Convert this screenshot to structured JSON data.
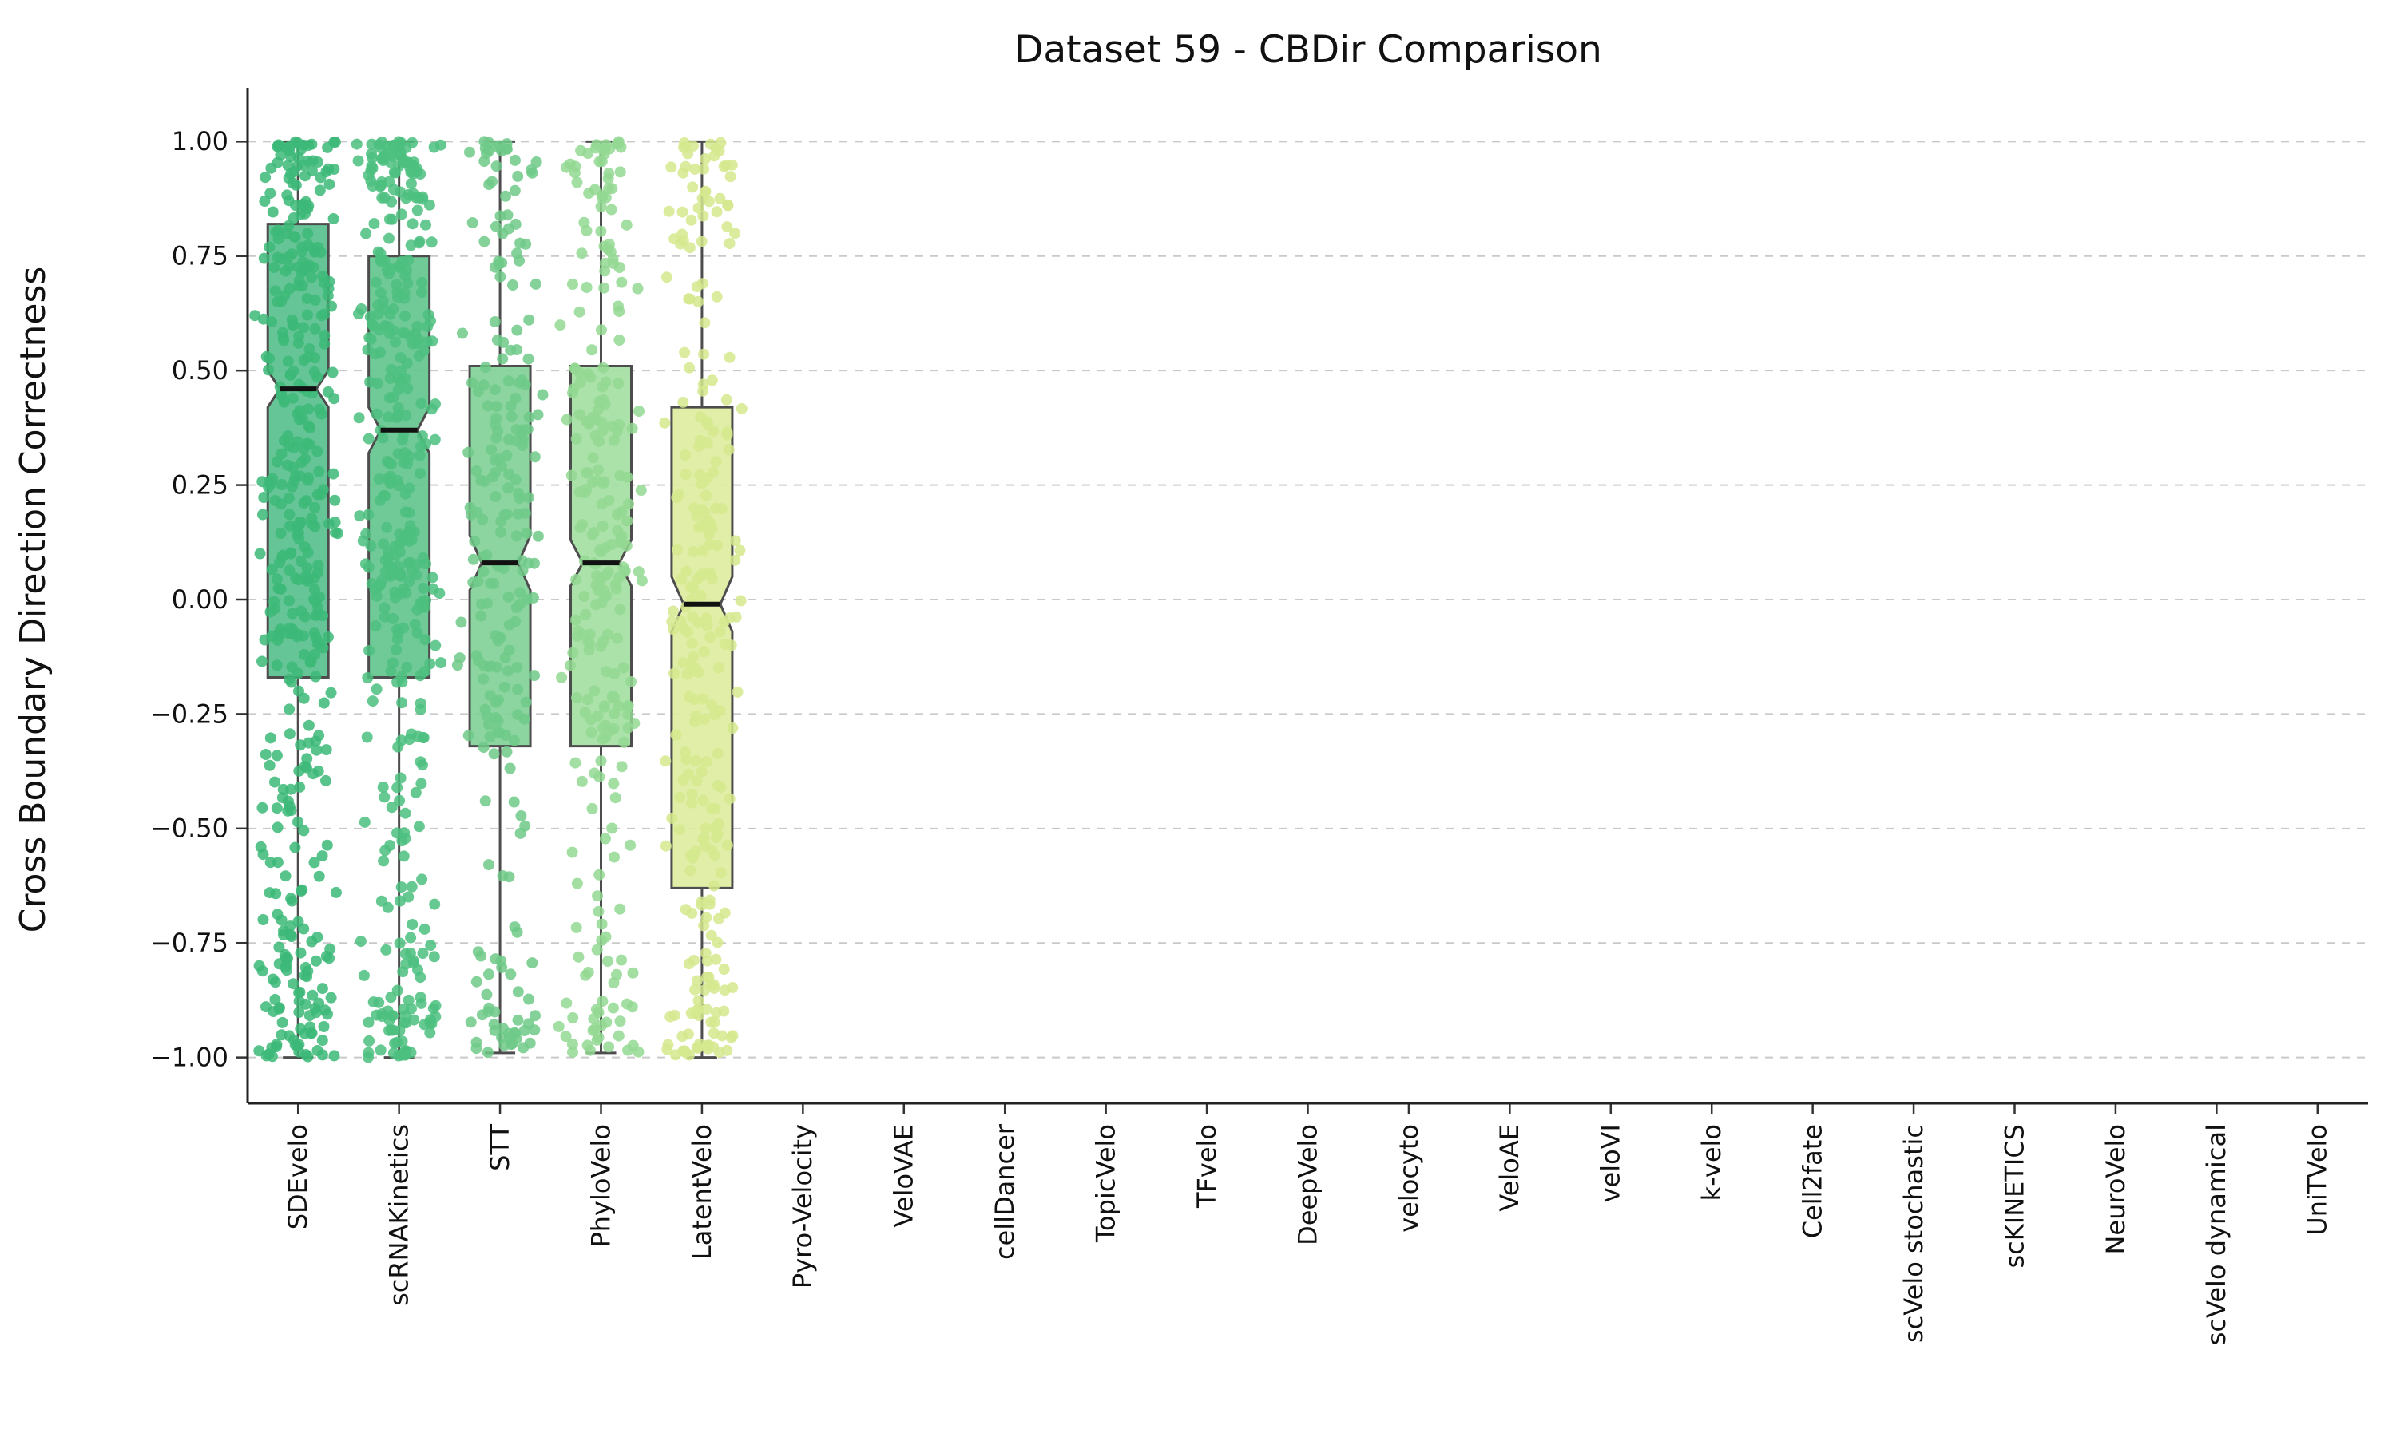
{
  "title": "Dataset 59 - CBDir Comparison",
  "chart_data": {
    "type": "boxplot",
    "title": "Dataset 59 - CBDir Comparison",
    "xlabel": "",
    "ylabel": "Cross Boundary Direction Correctness",
    "ylim": [
      -1.1,
      1.1
    ],
    "yticks": [
      1.0,
      0.75,
      0.5,
      0.25,
      0.0,
      -0.25,
      -0.5,
      -0.75,
      -1.0
    ],
    "ytick_labels": [
      "1.00",
      "0.75",
      "0.50",
      "0.25",
      "0.00",
      "−0.25",
      "−0.50",
      "−0.75",
      "−1.00"
    ],
    "grid": "horizontal-dashed",
    "grid_color": "#c9c9c9",
    "categories": [
      "SDEvelo",
      "scRNAKinetics",
      "STT",
      "PhyloVelo",
      "LatentVelo",
      "Pyro-Velocity",
      "VeloVAE",
      "cellDancer",
      "TopicVelo",
      "TFvelo",
      "DeepVelo",
      "velocyto",
      "VeloAE",
      "veloVI",
      "k-velo",
      "Cell2fate",
      "scVelo stochastic",
      "scKINETICS",
      "NeuroVelo",
      "scVelo dynamical",
      "UniTVelo"
    ],
    "notched": true,
    "overlay": "jittered-points",
    "boxes": [
      {
        "category": "SDEvelo",
        "median": 0.46,
        "q1": -0.17,
        "q3": 0.82,
        "notch_low": 0.42,
        "notch_high": 0.5,
        "whisker_low": -1.0,
        "whisker_high": 1.0,
        "box_color": "#55bf8b",
        "point_color": "#3cb878",
        "n_points": 420
      },
      {
        "category": "scRNAKinetics",
        "median": 0.37,
        "q1": -0.17,
        "q3": 0.75,
        "notch_low": 0.32,
        "notch_high": 0.42,
        "whisker_low": -1.0,
        "whisker_high": 1.0,
        "box_color": "#61c48c",
        "point_color": "#4cbf7f",
        "n_points": 400
      },
      {
        "category": "STT",
        "median": 0.08,
        "q1": -0.32,
        "q3": 0.51,
        "notch_low": 0.02,
        "notch_high": 0.14,
        "whisker_low": -0.99,
        "whisker_high": 1.0,
        "box_color": "#80d097",
        "point_color": "#6fca88",
        "n_points": 230
      },
      {
        "category": "PhyloVelo",
        "median": 0.08,
        "q1": -0.32,
        "q3": 0.51,
        "notch_low": 0.03,
        "notch_high": 0.13,
        "whisker_low": -0.99,
        "whisker_high": 1.0,
        "box_color": "#a2dfa0",
        "point_color": "#93d893",
        "n_points": 260
      },
      {
        "category": "LatentVelo",
        "median": -0.01,
        "q1": -0.63,
        "q3": 0.42,
        "notch_low": -0.07,
        "notch_high": 0.05,
        "whisker_low": -1.0,
        "whisker_high": 1.0,
        "box_color": "#ddec9d",
        "point_color": "#d5e98e",
        "n_points": 260
      }
    ],
    "empty_categories": [
      "Pyro-Velocity",
      "VeloVAE",
      "cellDancer",
      "TopicVelo",
      "TFvelo",
      "DeepVelo",
      "velocyto",
      "VeloAE",
      "veloVI",
      "k-velo",
      "Cell2fate",
      "scVelo stochastic",
      "scKINETICS",
      "NeuroVelo",
      "scVelo dynamical",
      "UniTVelo"
    ],
    "box_edge_color": "#4d4d4d",
    "median_color": "#111111",
    "legend": "none"
  }
}
